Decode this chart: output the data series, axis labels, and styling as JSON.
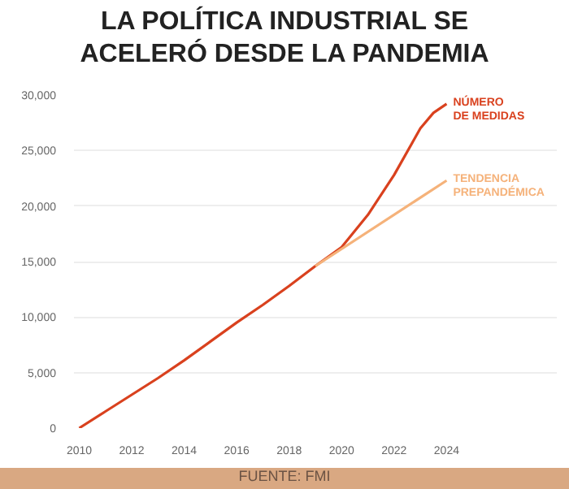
{
  "chart_data": {
    "type": "line",
    "title": "LA POLÍTICA INDUSTRIAL SE ACELERÓ DESDE LA PANDEMIA",
    "series": [
      {
        "name": "NÚMERO DE MEDIDAS",
        "color": "#d9411e",
        "x": [
          2010,
          2011,
          2012,
          2013,
          2014,
          2015,
          2016,
          2017,
          2018,
          2019,
          2020,
          2021,
          2022,
          2023,
          2023.5,
          2024
        ],
        "values": [
          0,
          1500,
          3000,
          4500,
          6100,
          7800,
          9500,
          11100,
          12800,
          14600,
          16300,
          19200,
          22800,
          27000,
          28400,
          29200
        ]
      },
      {
        "name": "TENDENCIA PREPANDÉMICA",
        "color": "#f5b27a",
        "x": [
          2019,
          2024
        ],
        "values": [
          14600,
          22300
        ]
      }
    ],
    "xlim": [
      2009.8,
      2028.2
    ],
    "xticks": [
      2010,
      2012,
      2014,
      2016,
      2018,
      2020,
      2022,
      2024
    ],
    "ylim": [
      0,
      30000
    ],
    "yticks": [
      {
        "value": 0,
        "label": "0"
      },
      {
        "value": 5000,
        "label": "5,000"
      },
      {
        "value": 10000,
        "label": "10,000"
      },
      {
        "value": 15000,
        "label": "15,000"
      },
      {
        "value": 20000,
        "label": "20,000"
      },
      {
        "value": 25000,
        "label": "25,000"
      },
      {
        "value": 30000,
        "label": "30,000"
      }
    ],
    "grid": "y",
    "legend": "right",
    "annotations": [
      "FUENTE: FMI"
    ]
  }
}
